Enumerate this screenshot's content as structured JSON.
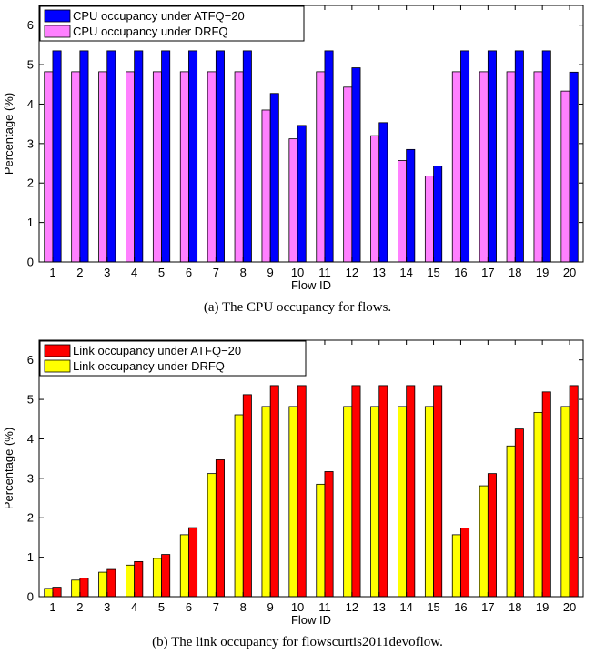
{
  "chart_data": [
    {
      "type": "bar",
      "caption": "(a)  The CPU occupancy for flows.",
      "xlabel": "Flow ID",
      "ylabel": "Percentage (%)",
      "ylim": [
        0,
        6.5
      ],
      "yticks": [
        0,
        1,
        2,
        3,
        4,
        5,
        6
      ],
      "grid": false,
      "legend_position": "top-left",
      "categories": [
        "1",
        "2",
        "3",
        "4",
        "5",
        "6",
        "7",
        "8",
        "9",
        "10",
        "11",
        "12",
        "13",
        "14",
        "15",
        "16",
        "17",
        "18",
        "19",
        "20"
      ],
      "series": [
        {
          "name": "CPU occupancy under DRFQ",
          "color": "#ff80ff",
          "values": [
            4.82,
            4.82,
            4.82,
            4.82,
            4.82,
            4.82,
            4.82,
            4.82,
            3.85,
            3.12,
            4.82,
            4.43,
            3.2,
            2.57,
            2.18,
            4.82,
            4.82,
            4.82,
            4.82,
            4.33
          ]
        },
        {
          "name": "CPU occupancy under ATFQ−20",
          "color": "#0000ff",
          "values": [
            5.35,
            5.35,
            5.35,
            5.35,
            5.35,
            5.35,
            5.35,
            5.35,
            4.27,
            3.46,
            5.35,
            4.92,
            3.53,
            2.85,
            2.43,
            5.35,
            5.35,
            5.35,
            5.35,
            4.81
          ]
        }
      ],
      "legend": [
        "CPU occupancy under ATFQ−20",
        "CPU occupancy under DRFQ"
      ]
    },
    {
      "type": "bar",
      "caption": "(b)  The link occupancy for flowscurtis2011devoflow.",
      "xlabel": "Flow ID",
      "ylabel": "Percentage (%)",
      "ylim": [
        0,
        6.5
      ],
      "yticks": [
        0,
        1,
        2,
        3,
        4,
        5,
        6
      ],
      "grid": false,
      "legend_position": "top-left",
      "categories": [
        "1",
        "2",
        "3",
        "4",
        "5",
        "6",
        "7",
        "8",
        "9",
        "10",
        "11",
        "12",
        "13",
        "14",
        "15",
        "16",
        "17",
        "18",
        "19",
        "20"
      ],
      "series": [
        {
          "name": "Link occupancy under DRFQ",
          "color": "#ffff00",
          "values": [
            0.21,
            0.42,
            0.62,
            0.8,
            0.97,
            1.57,
            3.12,
            4.61,
            4.82,
            4.82,
            2.85,
            4.82,
            4.82,
            4.82,
            4.82,
            1.57,
            2.81,
            3.82,
            4.67,
            4.82
          ]
        },
        {
          "name": "Link occupancy under ATFQ−20",
          "color": "#ff0000",
          "values": [
            0.24,
            0.47,
            0.69,
            0.89,
            1.07,
            1.75,
            3.47,
            5.12,
            5.35,
            5.35,
            3.17,
            5.35,
            5.35,
            5.35,
            5.35,
            1.74,
            3.12,
            4.25,
            5.19,
            5.35
          ]
        }
      ],
      "legend": [
        "Link occupancy under ATFQ−20",
        "Link occupancy under DRFQ"
      ]
    }
  ]
}
